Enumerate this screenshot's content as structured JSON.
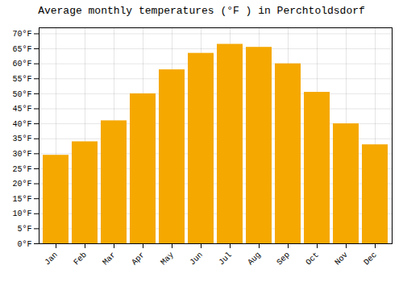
{
  "chart_data": {
    "type": "bar",
    "title": "Average monthly temperatures (°F ) in Perchtoldsdorf",
    "categories": [
      "Jan",
      "Feb",
      "Mar",
      "Apr",
      "May",
      "Jun",
      "Jul",
      "Aug",
      "Sep",
      "Oct",
      "Nov",
      "Dec"
    ],
    "values": [
      29.5,
      34.0,
      41.0,
      50.0,
      58.0,
      63.5,
      66.5,
      65.5,
      60.0,
      50.5,
      40.0,
      33.0
    ],
    "color": "#F5A800",
    "ylim": [
      0,
      72
    ],
    "yticks": [
      {
        "value": 0,
        "label": "0°F"
      },
      {
        "value": 5,
        "label": "5°F"
      },
      {
        "value": 10,
        "label": "10°F"
      },
      {
        "value": 15,
        "label": "15°F"
      },
      {
        "value": 20,
        "label": "20°F"
      },
      {
        "value": 25,
        "label": "25°F"
      },
      {
        "value": 30,
        "label": "30°F"
      },
      {
        "value": 35,
        "label": "35°F"
      },
      {
        "value": 40,
        "label": "40°F"
      },
      {
        "value": 45,
        "label": "45°F"
      },
      {
        "value": 50,
        "label": "50°F"
      },
      {
        "value": 55,
        "label": "55°F"
      },
      {
        "value": 60,
        "label": "60°F"
      },
      {
        "value": 65,
        "label": "65°F"
      },
      {
        "value": 70,
        "label": "70°F"
      }
    ],
    "grid": true
  }
}
